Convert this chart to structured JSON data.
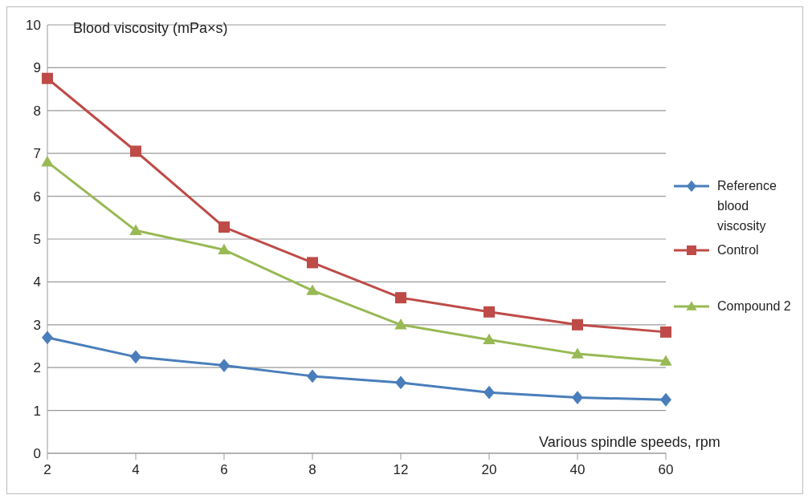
{
  "chart_data": {
    "type": "line",
    "ylabel": "Blood viscosity (mPa×s)",
    "xlabel": "Various spindle speeds, rpm",
    "categories": [
      "2",
      "4",
      "6",
      "8",
      "12",
      "20",
      "40",
      "60"
    ],
    "ylim": [
      0,
      10
    ],
    "yticks": [
      0,
      1,
      2,
      3,
      4,
      5,
      6,
      7,
      8,
      9,
      10
    ],
    "grid": "y",
    "legend": "right",
    "line_style": "solid",
    "series": [
      {
        "name": "Reference blood viscosity",
        "color": "#4a7ebb",
        "marker": "diamond",
        "values": [
          2.7,
          2.25,
          2.05,
          1.8,
          1.65,
          1.42,
          1.3,
          1.25
        ]
      },
      {
        "name": "Control",
        "color": "#be4b48",
        "marker": "square",
        "values": [
          8.75,
          7.05,
          5.28,
          4.45,
          3.63,
          3.3,
          3.0,
          2.83
        ]
      },
      {
        "name": "Compound 2",
        "color": "#98b954",
        "marker": "triangle",
        "values": [
          6.8,
          5.2,
          4.75,
          3.8,
          3.0,
          2.65,
          2.32,
          2.15
        ]
      }
    ]
  }
}
